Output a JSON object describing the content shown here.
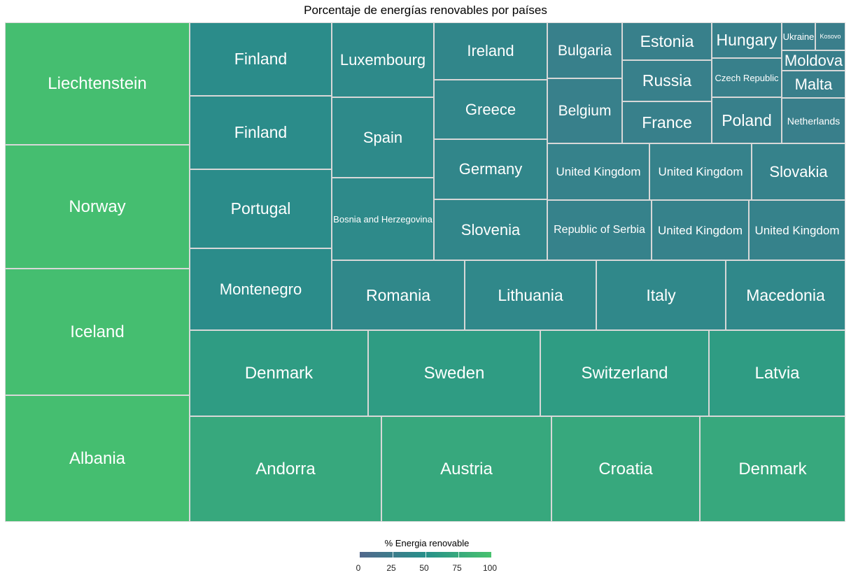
{
  "chart_data": {
    "type": "treemap",
    "title": "Porcentaje de energías renovables por países",
    "legend": {
      "title": "% Energia renovable",
      "ticks": [
        "0",
        "25",
        "50",
        "75",
        "100"
      ],
      "min": 0,
      "max": 100,
      "color_low": "#52688c",
      "color_mid": "#27908a",
      "color_high": "#48c26e",
      "placement": "bottom"
    },
    "groups": [
      {
        "labels": [
          "Liechtenstein",
          "Norway",
          "Iceland",
          "Albania"
        ],
        "value": 96,
        "sizes": [
          175,
          177,
          181,
          181
        ]
      },
      {
        "labels": [
          "Andorra",
          "Austria",
          "Croatia",
          "Denmark"
        ],
        "value": 74,
        "sizes": [
          274,
          243,
          212,
          208
        ]
      },
      {
        "labels": [
          "Denmark",
          "Sweden",
          "Switzerland",
          "Latvia"
        ],
        "value": 62,
        "sizes": [
          255,
          246,
          241,
          195
        ]
      },
      {
        "labels": [
          "Finland",
          "Finland",
          "Portugal",
          "Montenegro"
        ],
        "value": 45,
        "sizes": [
          105,
          105,
          113,
          117
        ]
      },
      {
        "labels": [
          "Romania",
          "Lithuania",
          "Italy",
          "Macedonia"
        ],
        "value": 40,
        "sizes": [
          190,
          188,
          185,
          171
        ]
      },
      {
        "labels": [
          "Luxembourg",
          "Spain",
          "Bosnia and Herzegovina"
        ],
        "value": 42,
        "sizes": [
          107,
          115,
          118
        ]
      },
      {
        "labels": [
          "Ireland",
          "Greece",
          "Germany",
          "Slovenia"
        ],
        "value": 38,
        "sizes": [
          82,
          85,
          86,
          87
        ]
      },
      {
        "labels": [
          "Bulgaria",
          "Belgium"
        ],
        "value": 30,
        "sizes": [
          80,
          93
        ]
      },
      {
        "labels": [
          "Estonia",
          "Russia",
          "France"
        ],
        "value": 30,
        "sizes": [
          54,
          59,
          60
        ]
      },
      {
        "labels": [
          "Hungary",
          "Czech Republic",
          "Poland"
        ],
        "value": 30,
        "sizes": [
          51,
          56,
          66
        ]
      },
      {
        "labels": [
          "Ukraine",
          "Kosovo"
        ],
        "value": 28,
        "sizes": [
          100,
          90
        ]
      },
      {
        "labels": [
          "Moldova",
          "Malta",
          "Netherlands"
        ],
        "value": 29,
        "sizes": [
          30,
          40,
          66
        ]
      },
      {
        "labels": [
          "United Kingdom",
          "United Kingdom",
          "Slovakia"
        ],
        "value": 33,
        "sizes": [
          146,
          146,
          134
        ]
      },
      {
        "labels": [
          "Republic of Serbia",
          "United Kingdom",
          "United Kingdom"
        ],
        "value": 33,
        "sizes": [
          149,
          139,
          138
        ]
      }
    ]
  }
}
